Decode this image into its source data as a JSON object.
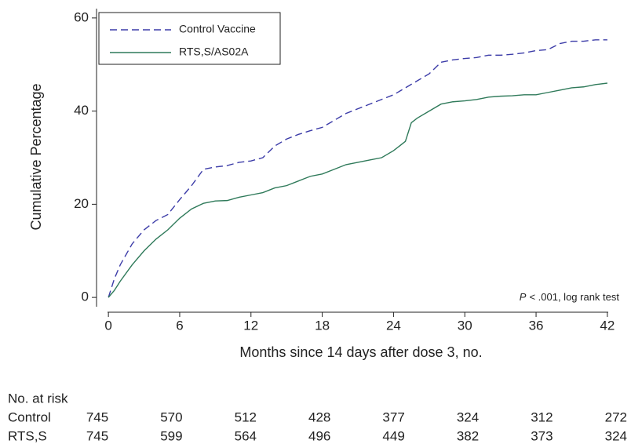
{
  "chart_data": {
    "type": "line",
    "ylabel": "Cumulative Percentage",
    "xlabel": "Months since 14 days after dose 3, no.",
    "xlim": [
      -1,
      43
    ],
    "ylim": [
      -2,
      62
    ],
    "xticks": [
      0,
      6,
      12,
      18,
      24,
      30,
      36,
      42
    ],
    "yticks": [
      0,
      20,
      40,
      60
    ],
    "legend": "top-left",
    "annotation": {
      "italic": "P",
      "text": "< .001, log rank test"
    },
    "series": [
      {
        "name": "Control Vaccine",
        "color": "#3c3ca8",
        "dashed": true,
        "x": [
          0,
          0.5,
          1,
          2,
          3,
          4,
          5,
          6,
          7,
          8,
          9,
          10,
          11,
          12,
          13,
          14,
          15,
          16,
          17,
          18,
          19,
          20,
          21,
          22,
          23,
          24,
          25,
          26,
          27,
          28,
          29,
          30,
          31,
          32,
          33,
          34,
          35,
          36,
          37,
          38,
          39,
          40,
          41,
          42
        ],
        "values": [
          0,
          4,
          7,
          11.5,
          14.5,
          16.5,
          17.8,
          21,
          24,
          27.5,
          28,
          28.3,
          29,
          29.3,
          30,
          32.5,
          34,
          35,
          35.8,
          36.5,
          38,
          39.5,
          40.5,
          41.5,
          42.5,
          43.5,
          45,
          46.5,
          48,
          50.5,
          51,
          51.3,
          51.5,
          52,
          52,
          52.2,
          52.5,
          53,
          53.2,
          54.5,
          55,
          55,
          55.3,
          55.3
        ]
      },
      {
        "name": "RTS,S/AS02A",
        "color": "#2f7a5a",
        "dashed": false,
        "x": [
          0,
          0.5,
          1,
          2,
          3,
          4,
          5,
          6,
          7,
          8,
          9,
          10,
          11,
          12,
          13,
          14,
          15,
          16,
          17,
          18,
          19,
          20,
          21,
          22,
          23,
          24,
          25,
          25.5,
          26,
          27,
          28,
          29,
          30,
          31,
          32,
          33,
          34,
          35,
          36,
          37,
          38,
          39,
          40,
          41,
          42
        ],
        "values": [
          0,
          1.5,
          3.5,
          7,
          10,
          12.5,
          14.5,
          17,
          19,
          20.2,
          20.7,
          20.8,
          21.5,
          22,
          22.5,
          23.5,
          24,
          25,
          26,
          26.5,
          27.5,
          28.5,
          29,
          29.5,
          30,
          31.5,
          33.5,
          37.5,
          38.5,
          40,
          41.5,
          42,
          42.2,
          42.5,
          43,
          43.2,
          43.3,
          43.5,
          43.5,
          44,
          44.5,
          45,
          45.2,
          45.7,
          46
        ]
      }
    ],
    "risk_table": {
      "title": "No. at risk",
      "rows": [
        {
          "label": "Control",
          "values": [
            745,
            570,
            512,
            428,
            377,
            324,
            312,
            272
          ]
        },
        {
          "label": "RTS,S",
          "values": [
            745,
            599,
            564,
            496,
            449,
            382,
            373,
            324
          ]
        }
      ]
    }
  }
}
